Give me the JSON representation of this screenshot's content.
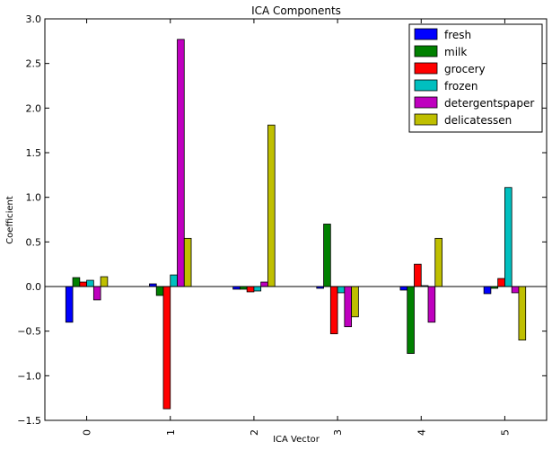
{
  "chart_data": {
    "type": "bar",
    "title": "ICA Components",
    "xlabel": "ICA Vector",
    "ylabel": "Coefficient",
    "categories": [
      "0",
      "1",
      "2",
      "3",
      "4",
      "5"
    ],
    "ylim": [
      -1.5,
      3.0
    ],
    "yticks": [
      -1.5,
      -1.0,
      -0.5,
      0.0,
      0.5,
      1.0,
      1.5,
      2.0,
      2.5,
      3.0
    ],
    "ytick_labels": [
      "−1.5",
      "−1.0",
      "−0.5",
      "0.0",
      "0.5",
      "1.0",
      "1.5",
      "2.0",
      "2.5",
      "3.0"
    ],
    "legend_position": "top-right",
    "grid": false,
    "series": [
      {
        "name": "fresh",
        "color": "#0000ff",
        "values": [
          -0.4,
          0.03,
          -0.03,
          -0.02,
          -0.04,
          -0.08
        ]
      },
      {
        "name": "milk",
        "color": "#008000",
        "values": [
          0.1,
          -0.1,
          -0.03,
          0.7,
          -0.75,
          -0.02
        ]
      },
      {
        "name": "grocery",
        "color": "#ff0000",
        "values": [
          0.05,
          -1.37,
          -0.06,
          -0.53,
          0.25,
          0.09
        ]
      },
      {
        "name": "frozen",
        "color": "#00bfbf",
        "values": [
          0.07,
          0.13,
          -0.05,
          -0.07,
          0.01,
          1.11
        ]
      },
      {
        "name": "detergentspaper",
        "color": "#bf00bf",
        "values": [
          -0.15,
          2.77,
          0.05,
          -0.45,
          -0.4,
          -0.07
        ]
      },
      {
        "name": "delicatessen",
        "color": "#bfbf00",
        "values": [
          0.11,
          0.54,
          1.81,
          -0.34,
          0.54,
          -0.6
        ]
      }
    ]
  }
}
